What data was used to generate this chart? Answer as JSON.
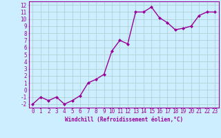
{
  "x": [
    0,
    1,
    2,
    3,
    4,
    5,
    6,
    7,
    8,
    9,
    10,
    11,
    12,
    13,
    14,
    15,
    16,
    17,
    18,
    19,
    20,
    21,
    22,
    23
  ],
  "y": [
    -2,
    -1,
    -1.5,
    -1,
    -2,
    -1.5,
    -0.8,
    1,
    1.5,
    2.2,
    5.5,
    7,
    6.5,
    11,
    11,
    11.7,
    10.2,
    9.5,
    8.5,
    8.7,
    9,
    10.5,
    11,
    11
  ],
  "line_color": "#990099",
  "marker_color": "#990099",
  "bg_color": "#cceeff",
  "grid_color": "#aacccc",
  "xlabel": "Windchill (Refroidissement éolien,°C)",
  "xlim": [
    -0.5,
    23.5
  ],
  "ylim": [
    -2.5,
    12.5
  ],
  "xticks": [
    0,
    1,
    2,
    3,
    4,
    5,
    6,
    7,
    8,
    9,
    10,
    11,
    12,
    13,
    14,
    15,
    16,
    17,
    18,
    19,
    20,
    21,
    22,
    23
  ],
  "yticks": [
    -2,
    -1,
    0,
    1,
    2,
    3,
    4,
    5,
    6,
    7,
    8,
    9,
    10,
    11,
    12
  ],
  "xlabel_fontsize": 5.5,
  "tick_fontsize": 5.5,
  "line_width": 1.0,
  "marker_size": 2.0
}
